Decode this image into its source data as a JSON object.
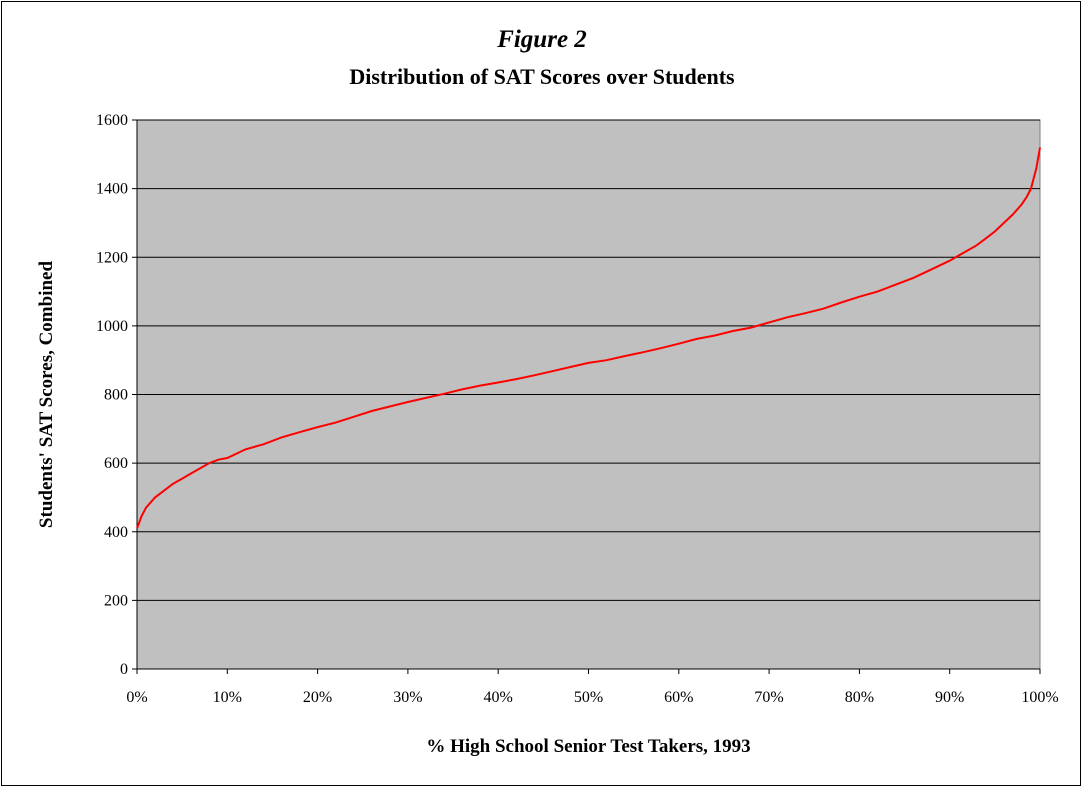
{
  "chart_data": {
    "type": "line",
    "figure_label": "Figure 2",
    "title": "Distribution of SAT Scores over Students",
    "xlabel": "% High School Senior Test Takers, 1993",
    "ylabel": "Students' SAT Scores, Combined",
    "xlim": [
      0,
      100
    ],
    "ylim": [
      0,
      1600
    ],
    "x_ticks": [
      0,
      10,
      20,
      30,
      40,
      50,
      60,
      70,
      80,
      90,
      100
    ],
    "x_tick_labels": [
      "0%",
      "10%",
      "20%",
      "30%",
      "40%",
      "50%",
      "60%",
      "70%",
      "80%",
      "90%",
      "100%"
    ],
    "y_ticks": [
      0,
      200,
      400,
      600,
      800,
      1000,
      1200,
      1400,
      1600
    ],
    "y_tick_labels": [
      "0",
      "200",
      "400",
      "600",
      "800",
      "1000",
      "1200",
      "1400",
      "1600"
    ],
    "grid": "horizontal",
    "legend": "none",
    "series": [
      {
        "color": "#ff0000",
        "x": [
          0,
          0.5,
          1,
          2,
          3,
          4,
          5,
          6,
          7,
          8,
          9,
          10,
          12,
          14,
          16,
          18,
          20,
          22,
          24,
          26,
          28,
          30,
          32,
          34,
          36,
          38,
          40,
          42,
          44,
          46,
          48,
          50,
          52,
          54,
          56,
          58,
          60,
          62,
          64,
          66,
          68,
          70,
          72,
          74,
          76,
          78,
          80,
          82,
          84,
          86,
          88,
          90,
          91,
          92,
          93,
          94,
          95,
          96,
          97,
          98,
          98.5,
          99,
          99.3,
          99.6,
          100
        ],
        "values": [
          410,
          445,
          470,
          500,
          520,
          540,
          555,
          570,
          585,
          600,
          610,
          615,
          640,
          655,
          675,
          690,
          705,
          718,
          735,
          752,
          765,
          778,
          790,
          802,
          815,
          826,
          835,
          845,
          856,
          868,
          880,
          892,
          900,
          912,
          923,
          935,
          948,
          962,
          972,
          985,
          995,
          1010,
          1025,
          1037,
          1050,
          1068,
          1085,
          1100,
          1120,
          1140,
          1165,
          1190,
          1205,
          1220,
          1235,
          1255,
          1275,
          1300,
          1325,
          1355,
          1375,
          1400,
          1430,
          1460,
          1520
        ]
      }
    ]
  }
}
